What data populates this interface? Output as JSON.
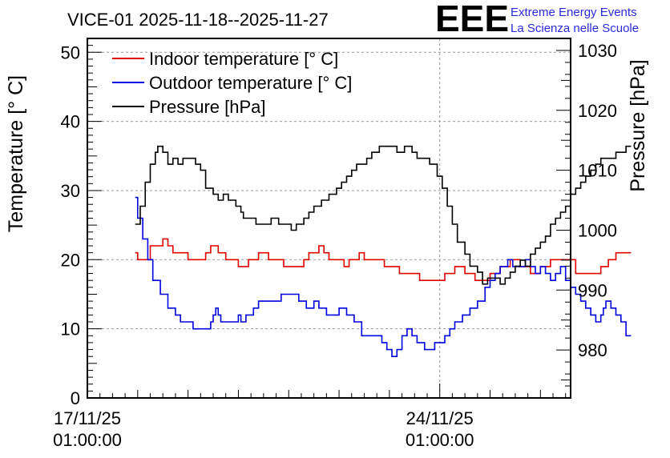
{
  "chart_data": {
    "type": "line",
    "title": "VICE-01 2025-11-18--2025-11-27",
    "logo": {
      "mark": "EEE",
      "line1": "Extreme Energy Events",
      "line2": "La Scienza nelle Scuole",
      "color": "#2a2ae0"
    },
    "xlabel": "",
    "ylabel_left": "Temperature [° C]",
    "ylabel_right": "Pressure [hPa]",
    "x_range_days": [
      0,
      9.6
    ],
    "ylim_left": [
      0,
      52
    ],
    "ylim_right": [
      972,
      1032
    ],
    "left_ticks": [
      "0",
      "10",
      "20",
      "30",
      "40",
      "50"
    ],
    "right_ticks": [
      "980",
      "990",
      "1000",
      "1010",
      "1020",
      "1030"
    ],
    "x_ticks": [
      {
        "day": 0,
        "line1": "17/11/25",
        "line2": "01:00:00"
      },
      {
        "day": 7,
        "line1": "24/11/25",
        "line2": "01:00:00"
      }
    ],
    "grid": true,
    "legend_position": "top-left",
    "series": [
      {
        "name": "Indoor temperature [° C]",
        "axis": "left",
        "color": "#e00000",
        "points": [
          [
            0.95,
            21
          ],
          [
            1.0,
            20
          ],
          [
            1.15,
            20
          ],
          [
            1.25,
            22
          ],
          [
            1.4,
            22
          ],
          [
            1.5,
            23
          ],
          [
            1.6,
            22
          ],
          [
            1.7,
            21
          ],
          [
            1.9,
            21
          ],
          [
            2.0,
            20
          ],
          [
            2.2,
            20
          ],
          [
            2.35,
            21
          ],
          [
            2.45,
            22
          ],
          [
            2.6,
            21
          ],
          [
            2.75,
            20
          ],
          [
            2.9,
            20
          ],
          [
            3.0,
            19
          ],
          [
            3.1,
            19
          ],
          [
            3.2,
            20
          ],
          [
            3.4,
            21
          ],
          [
            3.6,
            20
          ],
          [
            3.8,
            20
          ],
          [
            3.9,
            19
          ],
          [
            4.0,
            19
          ],
          [
            4.2,
            19
          ],
          [
            4.3,
            20
          ],
          [
            4.4,
            21
          ],
          [
            4.6,
            22
          ],
          [
            4.7,
            21
          ],
          [
            4.8,
            20
          ],
          [
            5.0,
            20
          ],
          [
            5.1,
            19
          ],
          [
            5.2,
            20
          ],
          [
            5.4,
            21
          ],
          [
            5.5,
            20
          ],
          [
            5.7,
            20
          ],
          [
            5.9,
            19
          ],
          [
            6.1,
            19
          ],
          [
            6.2,
            18
          ],
          [
            6.4,
            18
          ],
          [
            6.6,
            17
          ],
          [
            6.8,
            17
          ],
          [
            7.0,
            17
          ],
          [
            7.1,
            18
          ],
          [
            7.3,
            19
          ],
          [
            7.5,
            18
          ],
          [
            7.7,
            17
          ],
          [
            7.9,
            17
          ],
          [
            8.0,
            18
          ],
          [
            8.2,
            19
          ],
          [
            8.3,
            19
          ],
          [
            8.4,
            20
          ],
          [
            8.6,
            19
          ],
          [
            8.8,
            18
          ],
          [
            9.0,
            19
          ],
          [
            9.2,
            20
          ],
          [
            9.4,
            20
          ],
          [
            9.7,
            18
          ],
          [
            10.0,
            18
          ],
          [
            10.2,
            19
          ],
          [
            10.35,
            20
          ],
          [
            10.5,
            21
          ],
          [
            10.8,
            21
          ]
        ]
      },
      {
        "name": "Outdoor temperature [° C]",
        "axis": "left",
        "color": "#0000e0",
        "points": [
          [
            0.95,
            29
          ],
          [
            1.0,
            26
          ],
          [
            1.1,
            23
          ],
          [
            1.2,
            20
          ],
          [
            1.3,
            17
          ],
          [
            1.45,
            15
          ],
          [
            1.6,
            13
          ],
          [
            1.75,
            12
          ],
          [
            1.85,
            11
          ],
          [
            2.0,
            11
          ],
          [
            2.1,
            10
          ],
          [
            2.35,
            10
          ],
          [
            2.45,
            11
          ],
          [
            2.5,
            12
          ],
          [
            2.55,
            13
          ],
          [
            2.6,
            12
          ],
          [
            2.65,
            11
          ],
          [
            2.9,
            11
          ],
          [
            3.0,
            12
          ],
          [
            3.05,
            11
          ],
          [
            3.15,
            12
          ],
          [
            3.3,
            13
          ],
          [
            3.4,
            14
          ],
          [
            3.7,
            14
          ],
          [
            3.85,
            15
          ],
          [
            4.1,
            15
          ],
          [
            4.2,
            14
          ],
          [
            4.35,
            13
          ],
          [
            4.5,
            14
          ],
          [
            4.6,
            13
          ],
          [
            4.75,
            12
          ],
          [
            4.9,
            12
          ],
          [
            5.0,
            13
          ],
          [
            5.15,
            12
          ],
          [
            5.3,
            11
          ],
          [
            5.45,
            9
          ],
          [
            5.7,
            9
          ],
          [
            5.85,
            8
          ],
          [
            5.95,
            7
          ],
          [
            6.05,
            6
          ],
          [
            6.15,
            7
          ],
          [
            6.25,
            9
          ],
          [
            6.35,
            10
          ],
          [
            6.45,
            9
          ],
          [
            6.55,
            8
          ],
          [
            6.7,
            7
          ],
          [
            6.9,
            8
          ],
          [
            7.1,
            9
          ],
          [
            7.2,
            10
          ],
          [
            7.3,
            11
          ],
          [
            7.45,
            12
          ],
          [
            7.6,
            13
          ],
          [
            7.75,
            14
          ],
          [
            7.9,
            16
          ],
          [
            8.0,
            17
          ],
          [
            8.1,
            18
          ],
          [
            8.2,
            19
          ],
          [
            8.35,
            20
          ],
          [
            8.45,
            19
          ],
          [
            8.55,
            19
          ],
          [
            8.7,
            20
          ],
          [
            8.8,
            19
          ],
          [
            8.9,
            18
          ],
          [
            9.0,
            19
          ],
          [
            9.1,
            18
          ],
          [
            9.2,
            17
          ],
          [
            9.3,
            18
          ],
          [
            9.4,
            19
          ],
          [
            9.5,
            17
          ],
          [
            9.6,
            16
          ],
          [
            9.7,
            15
          ],
          [
            9.8,
            14
          ],
          [
            9.9,
            13
          ],
          [
            10.0,
            12
          ],
          [
            10.1,
            11
          ],
          [
            10.2,
            12
          ],
          [
            10.25,
            13
          ],
          [
            10.3,
            14
          ],
          [
            10.4,
            13
          ],
          [
            10.5,
            12
          ],
          [
            10.6,
            11
          ],
          [
            10.7,
            9
          ],
          [
            10.8,
            9
          ]
        ]
      },
      {
        "name": "Pressure [hPa]",
        "axis": "right",
        "color": "#000000",
        "points": [
          [
            0.95,
            1001
          ],
          [
            1.05,
            1004
          ],
          [
            1.15,
            1008
          ],
          [
            1.25,
            1011
          ],
          [
            1.35,
            1013
          ],
          [
            1.4,
            1014
          ],
          [
            1.5,
            1013
          ],
          [
            1.6,
            1011
          ],
          [
            1.7,
            1012
          ],
          [
            1.8,
            1011
          ],
          [
            1.9,
            1012
          ],
          [
            2.05,
            1012
          ],
          [
            2.15,
            1011
          ],
          [
            2.25,
            1010
          ],
          [
            2.35,
            1007
          ],
          [
            2.5,
            1006
          ],
          [
            2.6,
            1005
          ],
          [
            2.7,
            1006
          ],
          [
            2.8,
            1005
          ],
          [
            2.95,
            1004
          ],
          [
            3.05,
            1003
          ],
          [
            3.1,
            1002
          ],
          [
            3.25,
            1002
          ],
          [
            3.35,
            1001
          ],
          [
            3.5,
            1001
          ],
          [
            3.65,
            1002
          ],
          [
            3.8,
            1001
          ],
          [
            3.95,
            1001
          ],
          [
            4.05,
            1000
          ],
          [
            4.15,
            1001
          ],
          [
            4.3,
            1002
          ],
          [
            4.4,
            1003
          ],
          [
            4.5,
            1004
          ],
          [
            4.65,
            1005
          ],
          [
            4.8,
            1006
          ],
          [
            4.95,
            1007
          ],
          [
            5.05,
            1008
          ],
          [
            5.15,
            1009
          ],
          [
            5.25,
            1010
          ],
          [
            5.35,
            1011
          ],
          [
            5.45,
            1011
          ],
          [
            5.55,
            1012
          ],
          [
            5.65,
            1013
          ],
          [
            5.8,
            1014
          ],
          [
            6.0,
            1014
          ],
          [
            6.15,
            1013
          ],
          [
            6.3,
            1014
          ],
          [
            6.45,
            1013
          ],
          [
            6.55,
            1012
          ],
          [
            6.7,
            1012
          ],
          [
            6.8,
            1011
          ],
          [
            6.95,
            1009
          ],
          [
            7.05,
            1007
          ],
          [
            7.15,
            1004
          ],
          [
            7.25,
            1001
          ],
          [
            7.35,
            998
          ],
          [
            7.5,
            996
          ],
          [
            7.6,
            994
          ],
          [
            7.75,
            993
          ],
          [
            7.85,
            991
          ],
          [
            7.95,
            992
          ],
          [
            8.1,
            992
          ],
          [
            8.2,
            991
          ],
          [
            8.3,
            992
          ],
          [
            8.4,
            993
          ],
          [
            8.5,
            994
          ],
          [
            8.6,
            995
          ],
          [
            8.7,
            994
          ],
          [
            8.8,
            996
          ],
          [
            8.9,
            997
          ],
          [
            9.0,
            998
          ],
          [
            9.1,
            999
          ],
          [
            9.2,
            1001
          ],
          [
            9.3,
            1002
          ],
          [
            9.4,
            1003
          ],
          [
            9.5,
            1004
          ],
          [
            9.6,
            1006
          ],
          [
            9.7,
            1007
          ],
          [
            9.8,
            1008
          ],
          [
            9.9,
            1009
          ],
          [
            10.0,
            1010
          ],
          [
            10.1,
            1011
          ],
          [
            10.2,
            1012
          ],
          [
            10.35,
            1012
          ],
          [
            10.5,
            1013
          ],
          [
            10.65,
            1013
          ],
          [
            10.7,
            1014
          ],
          [
            10.8,
            1014
          ]
        ]
      }
    ]
  }
}
